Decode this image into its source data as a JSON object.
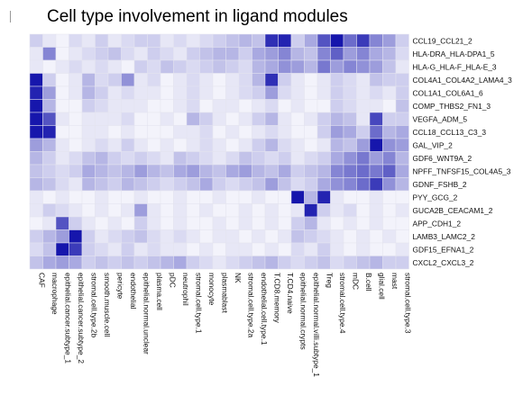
{
  "chart_data": {
    "type": "heatmap",
    "title": "Cell type involvement in ligand modules",
    "rows": [
      "CCL19_CCL21_2",
      "HLA-DRA_HLA-DPA1_5",
      "HLA-G_HLA-F_HLA-E_3",
      "COL4A1_COL4A2_LAMA4_3",
      "COL1A1_COL6A1_6",
      "COMP_THBS2_FN1_3",
      "VEGFA_ADM_5",
      "CCL18_CCL13_C3_3",
      "GAL_VIP_2",
      "GDF6_WNT9A_2",
      "NPFF_TNFSF15_COL4A5_3",
      "GDNF_FSHB_2",
      "PYY_GCG_2",
      "GUCA2B_CEACAM1_2",
      "APP_CDH1_2",
      "LAMB3_LAMC2_2",
      "GDF15_EFNA1_2",
      "CXCL2_CXCL3_2"
    ],
    "columns": [
      "CAF",
      "macrophage",
      "epithelial.cancer.subtype_1",
      "epithelial.cancer.subtype_2",
      "stromal.cell.type.2b",
      "smooth.muscle.cell",
      "pericyte",
      "endothelial",
      "epithelial.normal.unclear",
      "plasma.cell",
      "pDC",
      "neutrophil",
      "stromal.cell.type.1",
      "monocyte",
      "plasmablast",
      "NK",
      "stromal.cell.type.2a",
      "endothelial.cell.type.1",
      "T.CD8.memory",
      "T.CD4.naive",
      "epithelial.normal.crypts",
      "epithelial.normal.villi.subtype_1",
      "Treg",
      "stromal.cell.type.4",
      "mDC",
      "B.cell",
      "glial.cell",
      "mast",
      "stromal.cell.type.3"
    ],
    "values": [
      [
        0.2,
        0.1,
        0.05,
        0.15,
        0.1,
        0.2,
        0.1,
        0.15,
        0.2,
        0.2,
        0.1,
        0.15,
        0.1,
        0.15,
        0.2,
        0.25,
        0.3,
        0.25,
        0.85,
        0.9,
        0.2,
        0.35,
        0.7,
        0.95,
        0.6,
        0.8,
        0.5,
        0.4,
        0.2
      ],
      [
        0.1,
        0.5,
        0.05,
        0.1,
        0.15,
        0.2,
        0.25,
        0.15,
        0.1,
        0.2,
        0.15,
        0.1,
        0.2,
        0.25,
        0.3,
        0.3,
        0.2,
        0.35,
        0.4,
        0.5,
        0.3,
        0.25,
        0.5,
        0.65,
        0.4,
        0.5,
        0.35,
        0.3,
        0.15
      ],
      [
        0.1,
        0.05,
        0.1,
        0.15,
        0.1,
        0.15,
        0.1,
        0.05,
        0.2,
        0.15,
        0.25,
        0.2,
        0.15,
        0.2,
        0.25,
        0.2,
        0.15,
        0.3,
        0.35,
        0.45,
        0.4,
        0.3,
        0.55,
        0.4,
        0.5,
        0.45,
        0.4,
        0.25,
        0.1
      ],
      [
        0.95,
        0.2,
        0.05,
        0.1,
        0.3,
        0.15,
        0.2,
        0.45,
        0.1,
        0.15,
        0.05,
        0.1,
        0.15,
        0.1,
        0.05,
        0.1,
        0.15,
        0.3,
        0.85,
        0.2,
        0.1,
        0.05,
        0.1,
        0.2,
        0.15,
        0.1,
        0.25,
        0.2,
        0.2
      ],
      [
        0.9,
        0.4,
        0.05,
        0.1,
        0.3,
        0.2,
        0.1,
        0.15,
        0.1,
        0.1,
        0.05,
        0.1,
        0.15,
        0.1,
        0.05,
        0.1,
        0.15,
        0.2,
        0.4,
        0.15,
        0.1,
        0.05,
        0.1,
        0.2,
        0.15,
        0.1,
        0.15,
        0.1,
        0.2
      ],
      [
        0.95,
        0.3,
        0.05,
        0.05,
        0.2,
        0.15,
        0.1,
        0.1,
        0.1,
        0.05,
        0.05,
        0.1,
        0.15,
        0.05,
        0.1,
        0.1,
        0.05,
        0.1,
        0.15,
        0.05,
        0.1,
        0.05,
        0.05,
        0.2,
        0.15,
        0.1,
        0.1,
        0.05,
        0.25
      ],
      [
        0.95,
        0.7,
        0.1,
        0.05,
        0.1,
        0.1,
        0.1,
        0.15,
        0.05,
        0.05,
        0.1,
        0.05,
        0.3,
        0.2,
        0.1,
        0.05,
        0.1,
        0.2,
        0.3,
        0.1,
        0.05,
        0.1,
        0.2,
        0.3,
        0.25,
        0.1,
        0.75,
        0.2,
        0.2
      ],
      [
        0.95,
        0.9,
        0.05,
        0.05,
        0.1,
        0.1,
        0.05,
        0.1,
        0.05,
        0.05,
        0.05,
        0.1,
        0.1,
        0.15,
        0.05,
        0.1,
        0.05,
        0.1,
        0.15,
        0.1,
        0.05,
        0.05,
        0.2,
        0.4,
        0.35,
        0.2,
        0.6,
        0.3,
        0.35
      ],
      [
        0.4,
        0.3,
        0.1,
        0.05,
        0.1,
        0.15,
        0.1,
        0.2,
        0.1,
        0.05,
        0.1,
        0.05,
        0.1,
        0.15,
        0.1,
        0.05,
        0.1,
        0.2,
        0.3,
        0.15,
        0.1,
        0.05,
        0.1,
        0.3,
        0.25,
        0.4,
        0.95,
        0.45,
        0.4
      ],
      [
        0.3,
        0.2,
        0.1,
        0.15,
        0.25,
        0.3,
        0.2,
        0.15,
        0.2,
        0.15,
        0.1,
        0.25,
        0.2,
        0.15,
        0.1,
        0.15,
        0.25,
        0.2,
        0.15,
        0.2,
        0.1,
        0.15,
        0.2,
        0.35,
        0.45,
        0.55,
        0.4,
        0.5,
        0.3
      ],
      [
        0.25,
        0.2,
        0.15,
        0.2,
        0.35,
        0.3,
        0.25,
        0.3,
        0.4,
        0.3,
        0.25,
        0.35,
        0.4,
        0.3,
        0.25,
        0.35,
        0.4,
        0.3,
        0.25,
        0.35,
        0.2,
        0.25,
        0.3,
        0.5,
        0.55,
        0.6,
        0.55,
        0.65,
        0.35
      ],
      [
        0.3,
        0.25,
        0.15,
        0.1,
        0.3,
        0.25,
        0.2,
        0.3,
        0.25,
        0.2,
        0.15,
        0.2,
        0.25,
        0.35,
        0.2,
        0.15,
        0.2,
        0.25,
        0.4,
        0.25,
        0.15,
        0.2,
        0.35,
        0.45,
        0.5,
        0.6,
        0.8,
        0.45,
        0.3
      ],
      [
        0.1,
        0.05,
        0.1,
        0.05,
        0.05,
        0.1,
        0.05,
        0.05,
        0.1,
        0.05,
        0.05,
        0.1,
        0.05,
        0.05,
        0.1,
        0.05,
        0.05,
        0.1,
        0.05,
        0.05,
        0.95,
        0.3,
        0.9,
        0.1,
        0.05,
        0.05,
        0.1,
        0.05,
        0.05
      ],
      [
        0.1,
        0.2,
        0.15,
        0.1,
        0.05,
        0.1,
        0.05,
        0.1,
        0.4,
        0.1,
        0.05,
        0.1,
        0.05,
        0.1,
        0.05,
        0.05,
        0.1,
        0.05,
        0.1,
        0.05,
        0.1,
        0.9,
        0.2,
        0.1,
        0.15,
        0.05,
        0.1,
        0.05,
        0.1
      ],
      [
        0.05,
        0.1,
        0.7,
        0.2,
        0.1,
        0.05,
        0.1,
        0.05,
        0.2,
        0.1,
        0.05,
        0.1,
        0.05,
        0.05,
        0.1,
        0.05,
        0.1,
        0.05,
        0.1,
        0.05,
        0.2,
        0.3,
        0.1,
        0.05,
        0.1,
        0.05,
        0.1,
        0.05,
        0.05
      ],
      [
        0.2,
        0.3,
        0.4,
        0.95,
        0.2,
        0.1,
        0.15,
        0.2,
        0.25,
        0.15,
        0.1,
        0.15,
        0.1,
        0.05,
        0.1,
        0.1,
        0.05,
        0.1,
        0.05,
        0.1,
        0.25,
        0.2,
        0.15,
        0.1,
        0.05,
        0.1,
        0.05,
        0.1,
        0.05
      ],
      [
        0.15,
        0.25,
        0.95,
        0.8,
        0.2,
        0.15,
        0.1,
        0.2,
        0.1,
        0.15,
        0.1,
        0.1,
        0.05,
        0.1,
        0.05,
        0.1,
        0.1,
        0.05,
        0.1,
        0.05,
        0.15,
        0.1,
        0.2,
        0.1,
        0.05,
        0.1,
        0.05,
        0.05,
        0.1
      ],
      [
        0.25,
        0.35,
        0.4,
        0.35,
        0.2,
        0.25,
        0.2,
        0.25,
        0.2,
        0.25,
        0.3,
        0.35,
        0.2,
        0.15,
        0.1,
        0.15,
        0.2,
        0.25,
        0.3,
        0.2,
        0.15,
        0.2,
        0.25,
        0.15,
        0.2,
        0.25,
        0.3,
        0.2,
        0.2
      ]
    ],
    "color_low": "#ffffff",
    "color_high": "#0a0aa8",
    "grid": false,
    "legend": "none"
  }
}
